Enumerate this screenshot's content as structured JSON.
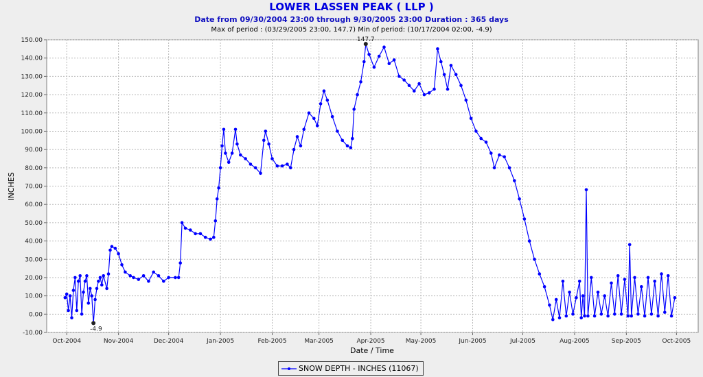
{
  "chart_data": {
    "type": "line",
    "title": "LOWER LASSEN PEAK ( LLP )",
    "subtitle": "Date from 09/30/2004 23:00 through 9/30/2005 23:00 Duration : 365 days",
    "subtitle2": "Max of period : (03/29/2005 23:00, 147.7)  Min of period: (10/17/2004 02:00,  -4.9)",
    "xlabel": "Date / Time",
    "ylabel": "INCHES",
    "ylim": [
      -10,
      150
    ],
    "xlim_days": [
      -12,
      378
    ],
    "yticks": [
      -10,
      0,
      10,
      20,
      30,
      40,
      50,
      60,
      70,
      80,
      90,
      100,
      110,
      120,
      130,
      140,
      150
    ],
    "ytick_labels": [
      "-10.00",
      "0.00",
      "10.00",
      "20.00",
      "30.00",
      "40.00",
      "50.00",
      "60.00",
      "70.00",
      "80.00",
      "90.00",
      "100.00",
      "110.00",
      "120.00",
      "130.00",
      "140.00",
      "150.00"
    ],
    "xticks": [
      {
        "label": "Oct-2004",
        "date": "2004-10-01"
      },
      {
        "label": "Nov-2004",
        "date": "2004-11-01"
      },
      {
        "label": "Dec-2004",
        "date": "2004-12-01"
      },
      {
        "label": "Jan-2005",
        "date": "2005-01-01"
      },
      {
        "label": "Feb-2005",
        "date": "2005-02-01"
      },
      {
        "label": "Mar-2005",
        "date": "2005-03-01"
      },
      {
        "label": "Apr-2005",
        "date": "2005-04-01"
      },
      {
        "label": "May-2005",
        "date": "2005-05-01"
      },
      {
        "label": "Jun-2005",
        "date": "2005-06-01"
      },
      {
        "label": "Jul-2005",
        "date": "2005-07-01"
      },
      {
        "label": "Aug-2005",
        "date": "2005-08-01"
      },
      {
        "label": "Sep-2005",
        "date": "2005-09-01"
      },
      {
        "label": "Oct-2005",
        "date": "2005-10-01"
      }
    ],
    "grid": true,
    "legend_position": "bottom-center",
    "series": [
      {
        "name": "SNOW DEPTH - INCHES (11067)",
        "color": "#0000ff",
        "points": [
          [
            "2004-09-30",
            9
          ],
          [
            "2004-10-01",
            11
          ],
          [
            "2004-10-02",
            2
          ],
          [
            "2004-10-03",
            10
          ],
          [
            "2004-10-04",
            -2
          ],
          [
            "2004-10-05",
            13
          ],
          [
            "2004-10-06",
            20
          ],
          [
            "2004-10-07",
            2
          ],
          [
            "2004-10-08",
            18
          ],
          [
            "2004-10-09",
            21
          ],
          [
            "2004-10-10",
            0
          ],
          [
            "2004-10-11",
            12
          ],
          [
            "2004-10-12",
            18
          ],
          [
            "2004-10-13",
            21
          ],
          [
            "2004-10-14",
            6
          ],
          [
            "2004-10-15",
            14
          ],
          [
            "2004-10-16",
            10
          ],
          [
            "2004-10-17",
            -4.9
          ],
          [
            "2004-10-18",
            8
          ],
          [
            "2004-10-19",
            14
          ],
          [
            "2004-10-20",
            18
          ],
          [
            "2004-10-21",
            20
          ],
          [
            "2004-10-22",
            16
          ],
          [
            "2004-10-23",
            21
          ],
          [
            "2004-10-25",
            14
          ],
          [
            "2004-10-26",
            22
          ],
          [
            "2004-10-27",
            35
          ],
          [
            "2004-10-28",
            37
          ],
          [
            "2004-10-30",
            36
          ],
          [
            "2004-11-01",
            33
          ],
          [
            "2004-11-03",
            27
          ],
          [
            "2004-11-05",
            23
          ],
          [
            "2004-11-08",
            21
          ],
          [
            "2004-11-10",
            20
          ],
          [
            "2004-11-13",
            19
          ],
          [
            "2004-11-16",
            21
          ],
          [
            "2004-11-19",
            18
          ],
          [
            "2004-11-22",
            23
          ],
          [
            "2004-11-25",
            21
          ],
          [
            "2004-11-28",
            18
          ],
          [
            "2004-12-01",
            20
          ],
          [
            "2004-12-05",
            20
          ],
          [
            "2004-12-07",
            20
          ],
          [
            "2004-12-08",
            28
          ],
          [
            "2004-12-09",
            50
          ],
          [
            "2004-12-11",
            47
          ],
          [
            "2004-12-14",
            46
          ],
          [
            "2004-12-17",
            44
          ],
          [
            "2004-12-20",
            44
          ],
          [
            "2004-12-23",
            42
          ],
          [
            "2004-12-26",
            41
          ],
          [
            "2004-12-28",
            42
          ],
          [
            "2004-12-29",
            51
          ],
          [
            "2004-12-30",
            63
          ],
          [
            "2004-12-31",
            69
          ],
          [
            "2005-01-01",
            80
          ],
          [
            "2005-01-02",
            92
          ],
          [
            "2005-01-03",
            101
          ],
          [
            "2005-01-04",
            88
          ],
          [
            "2005-01-06",
            83
          ],
          [
            "2005-01-08",
            88
          ],
          [
            "2005-01-10",
            101
          ],
          [
            "2005-01-11",
            93
          ],
          [
            "2005-01-13",
            87
          ],
          [
            "2005-01-16",
            85
          ],
          [
            "2005-01-19",
            82
          ],
          [
            "2005-01-22",
            80
          ],
          [
            "2005-01-25",
            77
          ],
          [
            "2005-01-27",
            95
          ],
          [
            "2005-01-28",
            100
          ],
          [
            "2005-01-30",
            93
          ],
          [
            "2005-02-01",
            85
          ],
          [
            "2005-02-04",
            81
          ],
          [
            "2005-02-07",
            81
          ],
          [
            "2005-02-10",
            82
          ],
          [
            "2005-02-12",
            80
          ],
          [
            "2005-02-14",
            90
          ],
          [
            "2005-02-16",
            97
          ],
          [
            "2005-02-18",
            92
          ],
          [
            "2005-02-20",
            101
          ],
          [
            "2005-02-23",
            110
          ],
          [
            "2005-02-26",
            107
          ],
          [
            "2005-02-28",
            103
          ],
          [
            "2005-03-02",
            115
          ],
          [
            "2005-03-04",
            122
          ],
          [
            "2005-03-06",
            117
          ],
          [
            "2005-03-09",
            108
          ],
          [
            "2005-03-12",
            100
          ],
          [
            "2005-03-15",
            95
          ],
          [
            "2005-03-18",
            92
          ],
          [
            "2005-03-20",
            91
          ],
          [
            "2005-03-21",
            96
          ],
          [
            "2005-03-22",
            112
          ],
          [
            "2005-03-24",
            120
          ],
          [
            "2005-03-26",
            127
          ],
          [
            "2005-03-28",
            138
          ],
          [
            "2005-03-29",
            147.7
          ],
          [
            "2005-03-31",
            142
          ],
          [
            "2005-04-03",
            135
          ],
          [
            "2005-04-06",
            141
          ],
          [
            "2005-04-09",
            146
          ],
          [
            "2005-04-12",
            137
          ],
          [
            "2005-04-15",
            139
          ],
          [
            "2005-04-18",
            130
          ],
          [
            "2005-04-21",
            128
          ],
          [
            "2005-04-24",
            125
          ],
          [
            "2005-04-27",
            122
          ],
          [
            "2005-04-30",
            126
          ],
          [
            "2005-05-03",
            120
          ],
          [
            "2005-05-06",
            121
          ],
          [
            "2005-05-09",
            123
          ],
          [
            "2005-05-11",
            145
          ],
          [
            "2005-05-13",
            138
          ],
          [
            "2005-05-15",
            131
          ],
          [
            "2005-05-17",
            123
          ],
          [
            "2005-05-19",
            136
          ],
          [
            "2005-05-22",
            131
          ],
          [
            "2005-05-25",
            125
          ],
          [
            "2005-05-28",
            117
          ],
          [
            "2005-05-31",
            107
          ],
          [
            "2005-06-03",
            100
          ],
          [
            "2005-06-06",
            96
          ],
          [
            "2005-06-09",
            94
          ],
          [
            "2005-06-12",
            88
          ],
          [
            "2005-06-14",
            80
          ],
          [
            "2005-06-17",
            87
          ],
          [
            "2005-06-20",
            86
          ],
          [
            "2005-06-23",
            80
          ],
          [
            "2005-06-26",
            73
          ],
          [
            "2005-06-29",
            63
          ],
          [
            "2005-07-02",
            52
          ],
          [
            "2005-07-05",
            40
          ],
          [
            "2005-07-08",
            30
          ],
          [
            "2005-07-11",
            22
          ],
          [
            "2005-07-14",
            15
          ],
          [
            "2005-07-17",
            5
          ],
          [
            "2005-07-19",
            -3
          ],
          [
            "2005-07-21",
            8
          ],
          [
            "2005-07-23",
            -2
          ],
          [
            "2005-07-25",
            18
          ],
          [
            "2005-07-27",
            -1
          ],
          [
            "2005-07-29",
            12
          ],
          [
            "2005-07-31",
            0
          ],
          [
            "2005-08-02",
            9
          ],
          [
            "2005-08-04",
            18
          ],
          [
            "2005-08-05",
            -2
          ],
          [
            "2005-08-06",
            10
          ],
          [
            "2005-08-07",
            -1
          ],
          [
            "2005-08-08",
            68
          ],
          [
            "2005-08-09",
            -1
          ],
          [
            "2005-08-11",
            20
          ],
          [
            "2005-08-13",
            -1
          ],
          [
            "2005-08-15",
            12
          ],
          [
            "2005-08-17",
            0
          ],
          [
            "2005-08-19",
            10
          ],
          [
            "2005-08-21",
            -1
          ],
          [
            "2005-08-23",
            17
          ],
          [
            "2005-08-25",
            0
          ],
          [
            "2005-08-27",
            21
          ],
          [
            "2005-08-29",
            0
          ],
          [
            "2005-08-31",
            19
          ],
          [
            "2005-09-02",
            -1
          ],
          [
            "2005-09-03",
            38
          ],
          [
            "2005-09-04",
            -1
          ],
          [
            "2005-09-06",
            20
          ],
          [
            "2005-09-08",
            0
          ],
          [
            "2005-09-10",
            15
          ],
          [
            "2005-09-12",
            -1
          ],
          [
            "2005-09-14",
            20
          ],
          [
            "2005-09-16",
            0
          ],
          [
            "2005-09-18",
            18
          ],
          [
            "2005-09-20",
            -1
          ],
          [
            "2005-09-22",
            22
          ],
          [
            "2005-09-24",
            1
          ],
          [
            "2005-09-26",
            21
          ],
          [
            "2005-09-28",
            -1
          ],
          [
            "2005-09-30",
            9
          ]
        ]
      }
    ]
  }
}
